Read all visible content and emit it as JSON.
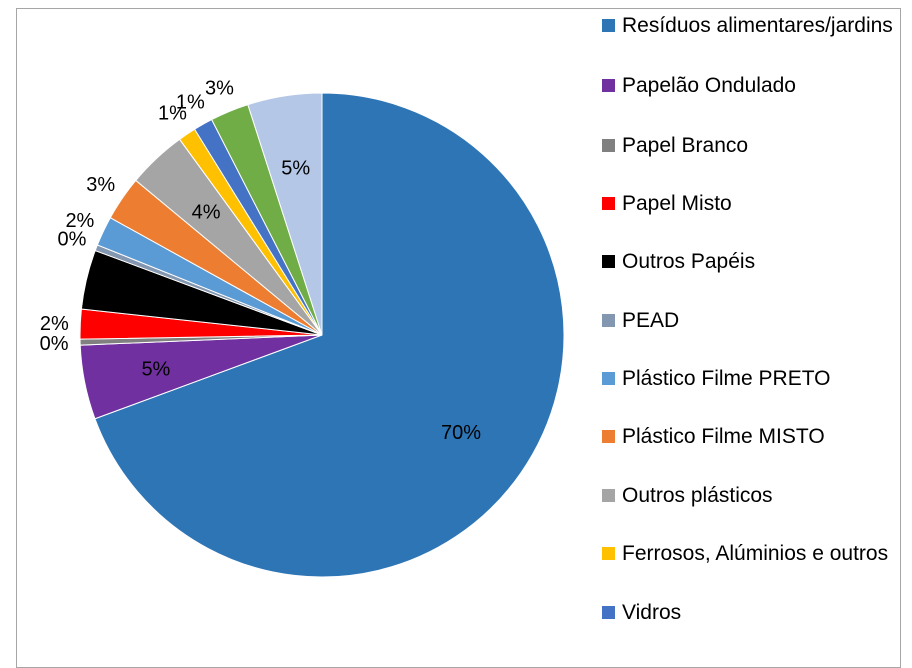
{
  "chart_data": {
    "type": "pie",
    "start": "top, clockwise",
    "categories": [
      "Resíduos alimentares/jardins",
      "Papelão Ondulado",
      "Papel Branco",
      "Papel Misto",
      "Outros Papéis",
      "PEAD",
      "Plástico Filme PRETO",
      "Plástico Filme MISTO",
      "Outros plásticos",
      "Ferrosos, Alúminios e outros",
      "Vidros",
      "",
      ""
    ],
    "values": [
      70.0,
      5.0,
      0.4,
      2.0,
      4.0,
      0.4,
      2.0,
      3.0,
      4.0,
      1.2,
      1.3,
      2.6,
      5.0
    ],
    "data_labels": [
      "70%",
      "5%",
      "0%",
      "2%",
      "4%",
      "0%",
      "2%",
      "3%",
      "4%",
      "1%",
      "1%",
      "3%",
      "5%"
    ],
    "colors": [
      "#2e75b6",
      "#7030a0",
      "#808080",
      "#ff0000",
      "#000000",
      "#8497b0",
      "#5b9bd5",
      "#ed7d31",
      "#a5a5a5",
      "#ffc000",
      "#4472c4",
      "#70ad47",
      "#b4c7e7"
    ],
    "label_placement": [
      "inside",
      "inside",
      "outside",
      "outside",
      "inside",
      "outside",
      "outside",
      "outside",
      "inside",
      "outside",
      "outside",
      "outside",
      "inside"
    ],
    "legend": {
      "position": "right",
      "items": [
        "Resíduos alimentares/jardins",
        "Papelão Ondulado",
        "Papel Branco",
        "Papel Misto",
        "Outros Papéis",
        "PEAD",
        "Plástico Filme PRETO",
        "Plástico Filme MISTO",
        "Outros plásticos",
        "Ferrosos, Alúminios e outros",
        "Vidros"
      ]
    }
  }
}
